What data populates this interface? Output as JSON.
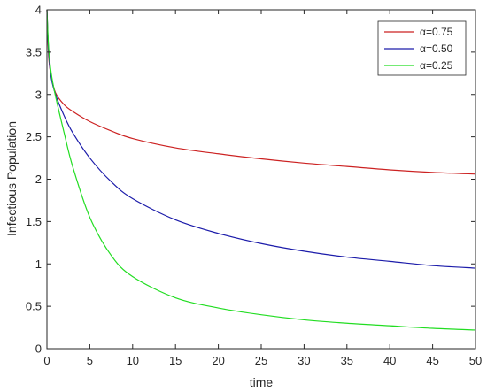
{
  "chart_data": {
    "type": "line",
    "title": "",
    "xlabel": "time",
    "ylabel": "Infectious Population",
    "xlim": [
      0,
      50
    ],
    "ylim": [
      0,
      4
    ],
    "xticks": [
      0,
      5,
      10,
      15,
      20,
      25,
      30,
      35,
      40,
      45,
      50
    ],
    "yticks": [
      0,
      0.5,
      1,
      1.5,
      2,
      2.5,
      3,
      3.5,
      4
    ],
    "xtick_labels": [
      "0",
      "5",
      "10",
      "15",
      "20",
      "25",
      "30",
      "35",
      "40",
      "45",
      "50"
    ],
    "ytick_labels": [
      "0",
      "0.5",
      "1",
      "1.5",
      "2",
      "2.5",
      "3",
      "3.5",
      "4"
    ],
    "grid": false,
    "legend_position": "top-right",
    "series": [
      {
        "name": "α=0.75",
        "color": "#cc2222",
        "x": [
          0,
          0.2,
          0.5,
          1,
          2,
          3,
          5,
          7.5,
          10,
          15,
          20,
          25,
          30,
          35,
          40,
          45,
          50
        ],
        "y": [
          4.0,
          3.45,
          3.22,
          3.02,
          2.88,
          2.8,
          2.68,
          2.57,
          2.48,
          2.37,
          2.3,
          2.24,
          2.19,
          2.15,
          2.11,
          2.08,
          2.06
        ]
      },
      {
        "name": "α=0.50",
        "color": "#1c1caa",
        "x": [
          0,
          0.2,
          0.5,
          1,
          2,
          3,
          5,
          7.5,
          10,
          15,
          20,
          25,
          30,
          35,
          40,
          45,
          50
        ],
        "y": [
          4.0,
          3.5,
          3.2,
          3.0,
          2.75,
          2.55,
          2.25,
          1.97,
          1.77,
          1.52,
          1.36,
          1.24,
          1.15,
          1.08,
          1.03,
          0.98,
          0.95
        ]
      },
      {
        "name": "α=0.25",
        "color": "#22dd22",
        "x": [
          0,
          0.2,
          0.5,
          1,
          2,
          3,
          5,
          7.5,
          10,
          15,
          20,
          25,
          30,
          35,
          40,
          45,
          50
        ],
        "y": [
          4.0,
          3.55,
          3.25,
          2.98,
          2.55,
          2.15,
          1.55,
          1.1,
          0.85,
          0.6,
          0.48,
          0.4,
          0.34,
          0.3,
          0.27,
          0.24,
          0.22
        ]
      }
    ]
  }
}
